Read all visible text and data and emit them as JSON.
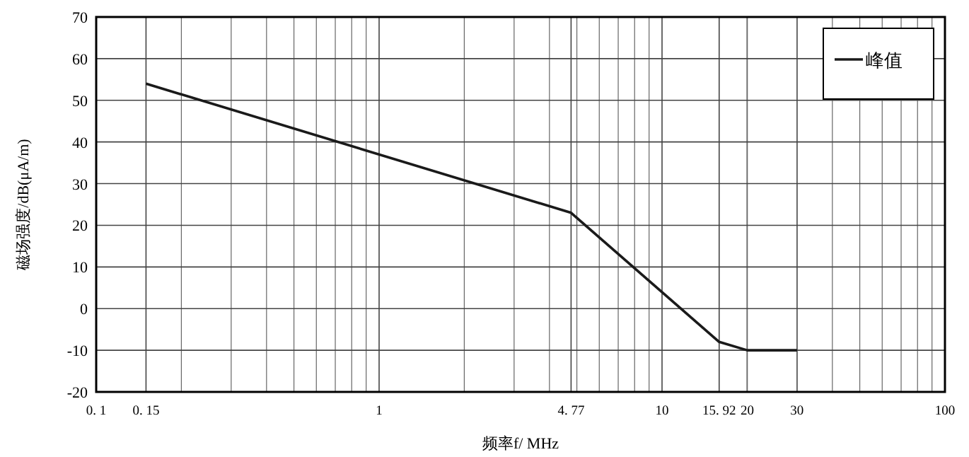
{
  "chart_data": {
    "type": "line",
    "xlabel": "频率f/ MHz",
    "ylabel": "磁场强度/dB(μA/m)",
    "x": [
      0.15,
      4.77,
      15.92,
      20,
      30
    ],
    "series": [
      {
        "name": "峰值",
        "color": "#1a1a1a",
        "values": [
          54,
          23,
          -8,
          -10,
          -10
        ]
      }
    ],
    "log": "x",
    "xlim": [
      0.1,
      100
    ],
    "ylim": [
      -20,
      70
    ],
    "xticks": [
      {
        "value": 0.1,
        "label": "0. 1"
      },
      {
        "value": 0.15,
        "label": "0. 15"
      },
      1,
      {
        "value": 4.77,
        "label": "4. 77"
      },
      10,
      {
        "value": 15.92,
        "label": "15. 92"
      },
      20,
      30,
      100
    ],
    "yticks": [
      -20,
      -10,
      0,
      10,
      20,
      30,
      40,
      50,
      60,
      70
    ],
    "grid": true,
    "legend": "top right"
  }
}
